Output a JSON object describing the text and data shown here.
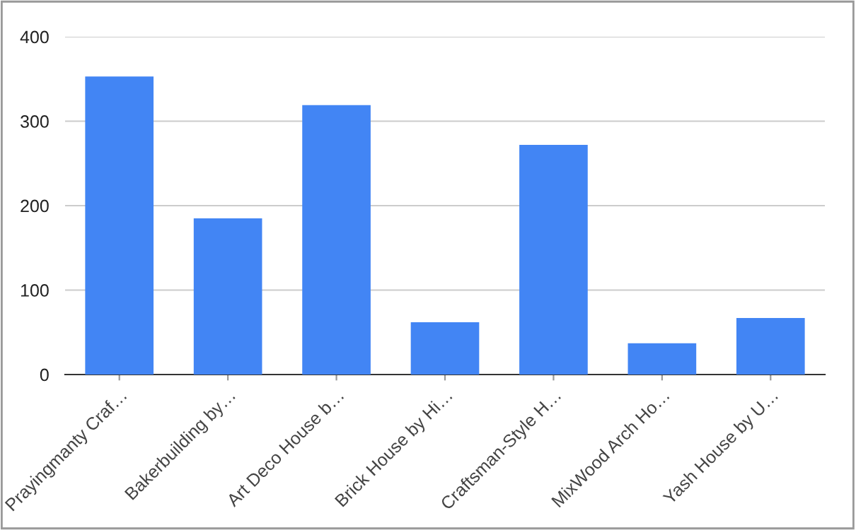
{
  "chart_data": {
    "type": "bar",
    "categories": [
      "Prayingmanty Craf…",
      "Bakerbuilding by…",
      "Art Deco House b…",
      "Brick House by Hi…",
      "Craftsman-Style H…",
      "MixWood Arch Ho…",
      "Yash House by U…"
    ],
    "values": [
      353,
      185,
      319,
      62,
      272,
      37,
      67
    ],
    "color": "#4285f4",
    "ylim": [
      0,
      400
    ],
    "yticks": [
      0,
      100,
      200,
      300,
      400
    ],
    "grid": "y",
    "legend": false
  }
}
